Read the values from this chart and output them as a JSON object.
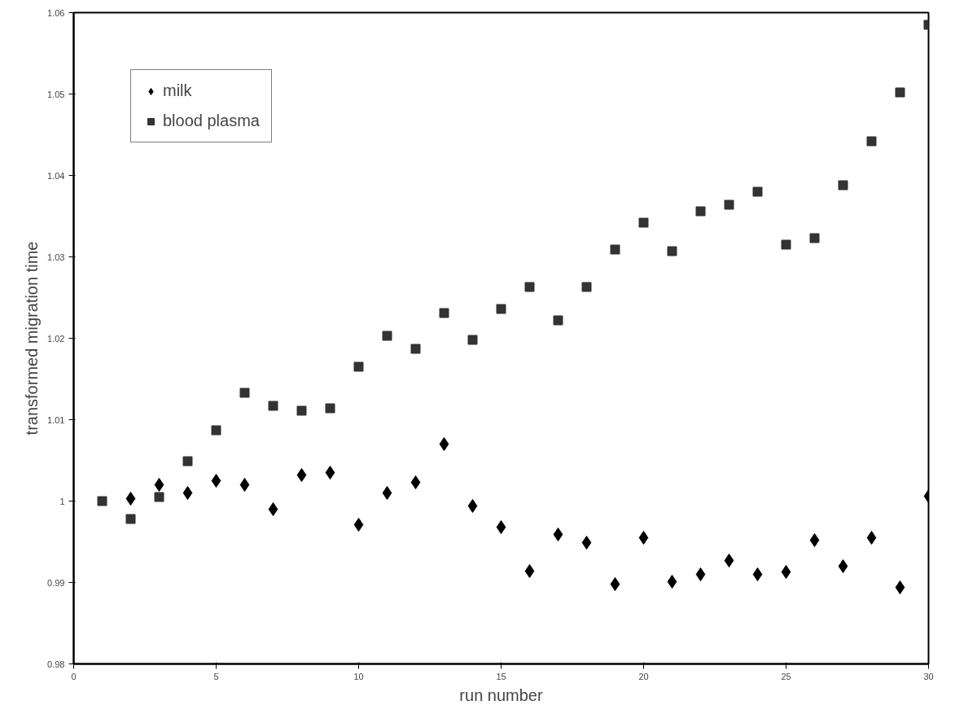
{
  "chart_data": {
    "type": "scatter",
    "xlabel": "run number",
    "ylabel": "transformed migration time",
    "x": [
      1,
      2,
      3,
      4,
      5,
      6,
      7,
      8,
      9,
      10,
      11,
      12,
      13,
      14,
      15,
      16,
      17,
      18,
      19,
      20,
      21,
      22,
      23,
      24,
      25,
      26,
      27,
      28,
      29,
      30
    ],
    "series": [
      {
        "name": "milk",
        "color": "#000000",
        "marker": "diamond",
        "values": [
          null,
          1.0003,
          1.002,
          1.001,
          1.0025,
          1.002,
          0.999,
          1.0032,
          1.0035,
          0.9971,
          1.001,
          1.0023,
          1.007,
          0.9994,
          0.9968,
          0.9914,
          0.9959,
          0.9949,
          0.9898,
          0.9955,
          0.9901,
          0.991,
          0.9927,
          0.991,
          0.9913,
          0.9952,
          0.992,
          0.9955,
          0.9894,
          1.0006
        ]
      },
      {
        "name": "blood plasma",
        "color": "#333333",
        "marker": "square",
        "values": [
          1.0,
          0.9978,
          1.0005,
          1.0049,
          1.0087,
          1.0133,
          1.0117,
          1.0111,
          1.0114,
          1.0165,
          1.0203,
          1.0187,
          1.0231,
          1.0198,
          1.0236,
          1.0263,
          1.0222,
          1.0263,
          1.0309,
          1.0342,
          1.0307,
          1.0356,
          1.0364,
          1.038,
          1.0315,
          1.0323,
          1.0388,
          1.0442,
          1.0502,
          1.0585
        ]
      }
    ],
    "xlim": [
      0,
      30
    ],
    "xticks": [
      0,
      5,
      10,
      15,
      20,
      25,
      30
    ],
    "ylim": [
      0.98,
      1.06
    ],
    "yticks": [
      0.98,
      0.99,
      1,
      1.01,
      1.02,
      1.03,
      1.04,
      1.05,
      1.06
    ],
    "grid": false,
    "legend": "top left"
  }
}
